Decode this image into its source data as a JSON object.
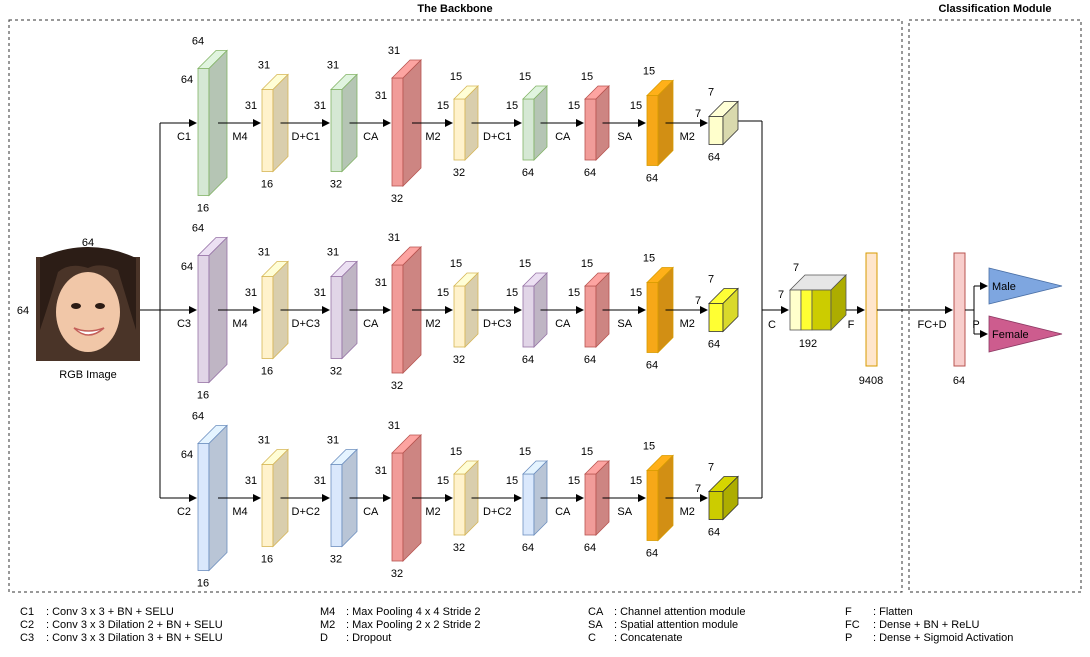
{
  "titles": {
    "backbone": "The Backbone",
    "classification": "Classification Module"
  },
  "input": {
    "caption": "RGB Image",
    "width_label": "64",
    "height_label": "64"
  },
  "colors": {
    "conv1": "#d5e8d4",
    "conv1_border": "#82b366",
    "conv3": "#e1d5e7",
    "conv3_border": "#9673a6",
    "conv2": "#dae8fc",
    "conv2_border": "#6c8ebf",
    "pool": "#fff2cc",
    "pool_border": "#d6b656",
    "ca": "#f8cecc",
    "ca_border": "#b85450",
    "sa": "#ffcd28",
    "sa_border": "#d79b00",
    "out1": "#ffffcc",
    "out3": "#ffff33",
    "out2": "#cccc00",
    "dense": "#ffe6cc",
    "dense_border": "#d79b00",
    "pred": "#f8cecc",
    "pred_border": "#b85450",
    "male": "#7ea6e0",
    "female": "#cd5c8e"
  },
  "branches": [
    {
      "name": "C1",
      "stages": [
        {
          "type": "conv",
          "op_label": "C1",
          "side_label": "64",
          "top_label": "64",
          "bottom_label": "16"
        },
        {
          "type": "pool",
          "op_label": "M4",
          "side_label": "31",
          "top_label": "31",
          "bottom_label": "16"
        },
        {
          "type": "conv",
          "op_label": "D+C1",
          "side_label": "31",
          "top_label": "31",
          "bottom_label": "32"
        },
        {
          "type": "ca",
          "op_label": "CA",
          "side_label": "31",
          "top_label": "31",
          "bottom_label": "32"
        },
        {
          "type": "pool",
          "op_label": "M2",
          "side_label": "15",
          "top_label": "15",
          "bottom_label": "32"
        },
        {
          "type": "conv",
          "op_label": "D+C1",
          "side_label": "15",
          "top_label": "15",
          "bottom_label": "64"
        },
        {
          "type": "ca",
          "op_label": "CA",
          "side_label": "15",
          "top_label": "15",
          "bottom_label": "64"
        },
        {
          "type": "sa",
          "op_label": "SA",
          "side_label": "15",
          "top_label": "15",
          "bottom_label": "64"
        },
        {
          "type": "out",
          "op_label": "M2",
          "side_label": "7",
          "top_label": "7",
          "bottom_label": "64"
        }
      ]
    },
    {
      "name": "C3",
      "stages": [
        {
          "type": "conv",
          "op_label": "C3",
          "side_label": "64",
          "top_label": "64",
          "bottom_label": "16"
        },
        {
          "type": "pool",
          "op_label": "M4",
          "side_label": "31",
          "top_label": "31",
          "bottom_label": "16"
        },
        {
          "type": "conv",
          "op_label": "D+C3",
          "side_label": "31",
          "top_label": "31",
          "bottom_label": "32"
        },
        {
          "type": "ca",
          "op_label": "CA",
          "side_label": "31",
          "top_label": "31",
          "bottom_label": "32"
        },
        {
          "type": "pool",
          "op_label": "M2",
          "side_label": "15",
          "top_label": "15",
          "bottom_label": "32"
        },
        {
          "type": "conv",
          "op_label": "D+C3",
          "side_label": "15",
          "top_label": "15",
          "bottom_label": "64"
        },
        {
          "type": "ca",
          "op_label": "CA",
          "side_label": "15",
          "top_label": "15",
          "bottom_label": "64"
        },
        {
          "type": "sa",
          "op_label": "SA",
          "side_label": "15",
          "top_label": "15",
          "bottom_label": "64"
        },
        {
          "type": "out",
          "op_label": "M2",
          "side_label": "7",
          "top_label": "7",
          "bottom_label": "64"
        }
      ]
    },
    {
      "name": "C2",
      "stages": [
        {
          "type": "conv",
          "op_label": "C2",
          "side_label": "64",
          "top_label": "64",
          "bottom_label": "16"
        },
        {
          "type": "pool",
          "op_label": "M4",
          "side_label": "31",
          "top_label": "31",
          "bottom_label": "16"
        },
        {
          "type": "conv",
          "op_label": "D+C2",
          "side_label": "31",
          "top_label": "31",
          "bottom_label": "32"
        },
        {
          "type": "ca",
          "op_label": "CA",
          "side_label": "31",
          "top_label": "31",
          "bottom_label": "32"
        },
        {
          "type": "pool",
          "op_label": "M2",
          "side_label": "15",
          "top_label": "15",
          "bottom_label": "32"
        },
        {
          "type": "conv",
          "op_label": "D+C2",
          "side_label": "15",
          "top_label": "15",
          "bottom_label": "64"
        },
        {
          "type": "ca",
          "op_label": "CA",
          "side_label": "15",
          "top_label": "15",
          "bottom_label": "64"
        },
        {
          "type": "sa",
          "op_label": "SA",
          "side_label": "15",
          "top_label": "15",
          "bottom_label": "64"
        },
        {
          "type": "out",
          "op_label": "M2",
          "side_label": "7",
          "top_label": "7",
          "bottom_label": "64"
        }
      ]
    }
  ],
  "concat": {
    "op_label": "C",
    "side_label": "7",
    "top_label": "7",
    "bottom_label": "192"
  },
  "flatten": {
    "op_label": "F",
    "bottom_label": "9408"
  },
  "dense": {
    "op_label": "FC+D",
    "bottom_label": "64"
  },
  "output": {
    "op_label": "P",
    "male": "Male",
    "female": "Female"
  },
  "legend": [
    [
      {
        "abbr": "C1",
        "desc": ": Conv 3 x 3 + BN + SELU"
      },
      {
        "abbr": "C2",
        "desc": ": Conv 3 x 3 Dilation 2 + BN + SELU"
      },
      {
        "abbr": "C3",
        "desc": ": Conv 3 x 3 Dilation 3 + BN + SELU"
      }
    ],
    [
      {
        "abbr": "M4",
        "desc": ": Max Pooling 4 x 4 Stride 2"
      },
      {
        "abbr": "M2",
        "desc": ": Max Pooling 2 x 2 Stride 2"
      },
      {
        "abbr": "D",
        "desc": ": Dropout"
      }
    ],
    [
      {
        "abbr": "CA",
        "desc": ": Channel attention module"
      },
      {
        "abbr": "SA",
        "desc": ": Spatial attention module"
      },
      {
        "abbr": "C",
        "desc": ": Concatenate"
      }
    ],
    [
      {
        "abbr": "F",
        "desc": ": Flatten"
      },
      {
        "abbr": "FC",
        "desc": ": Dense + BN + ReLU"
      },
      {
        "abbr": "P",
        "desc": ": Dense + Sigmoid Activation"
      }
    ]
  ]
}
